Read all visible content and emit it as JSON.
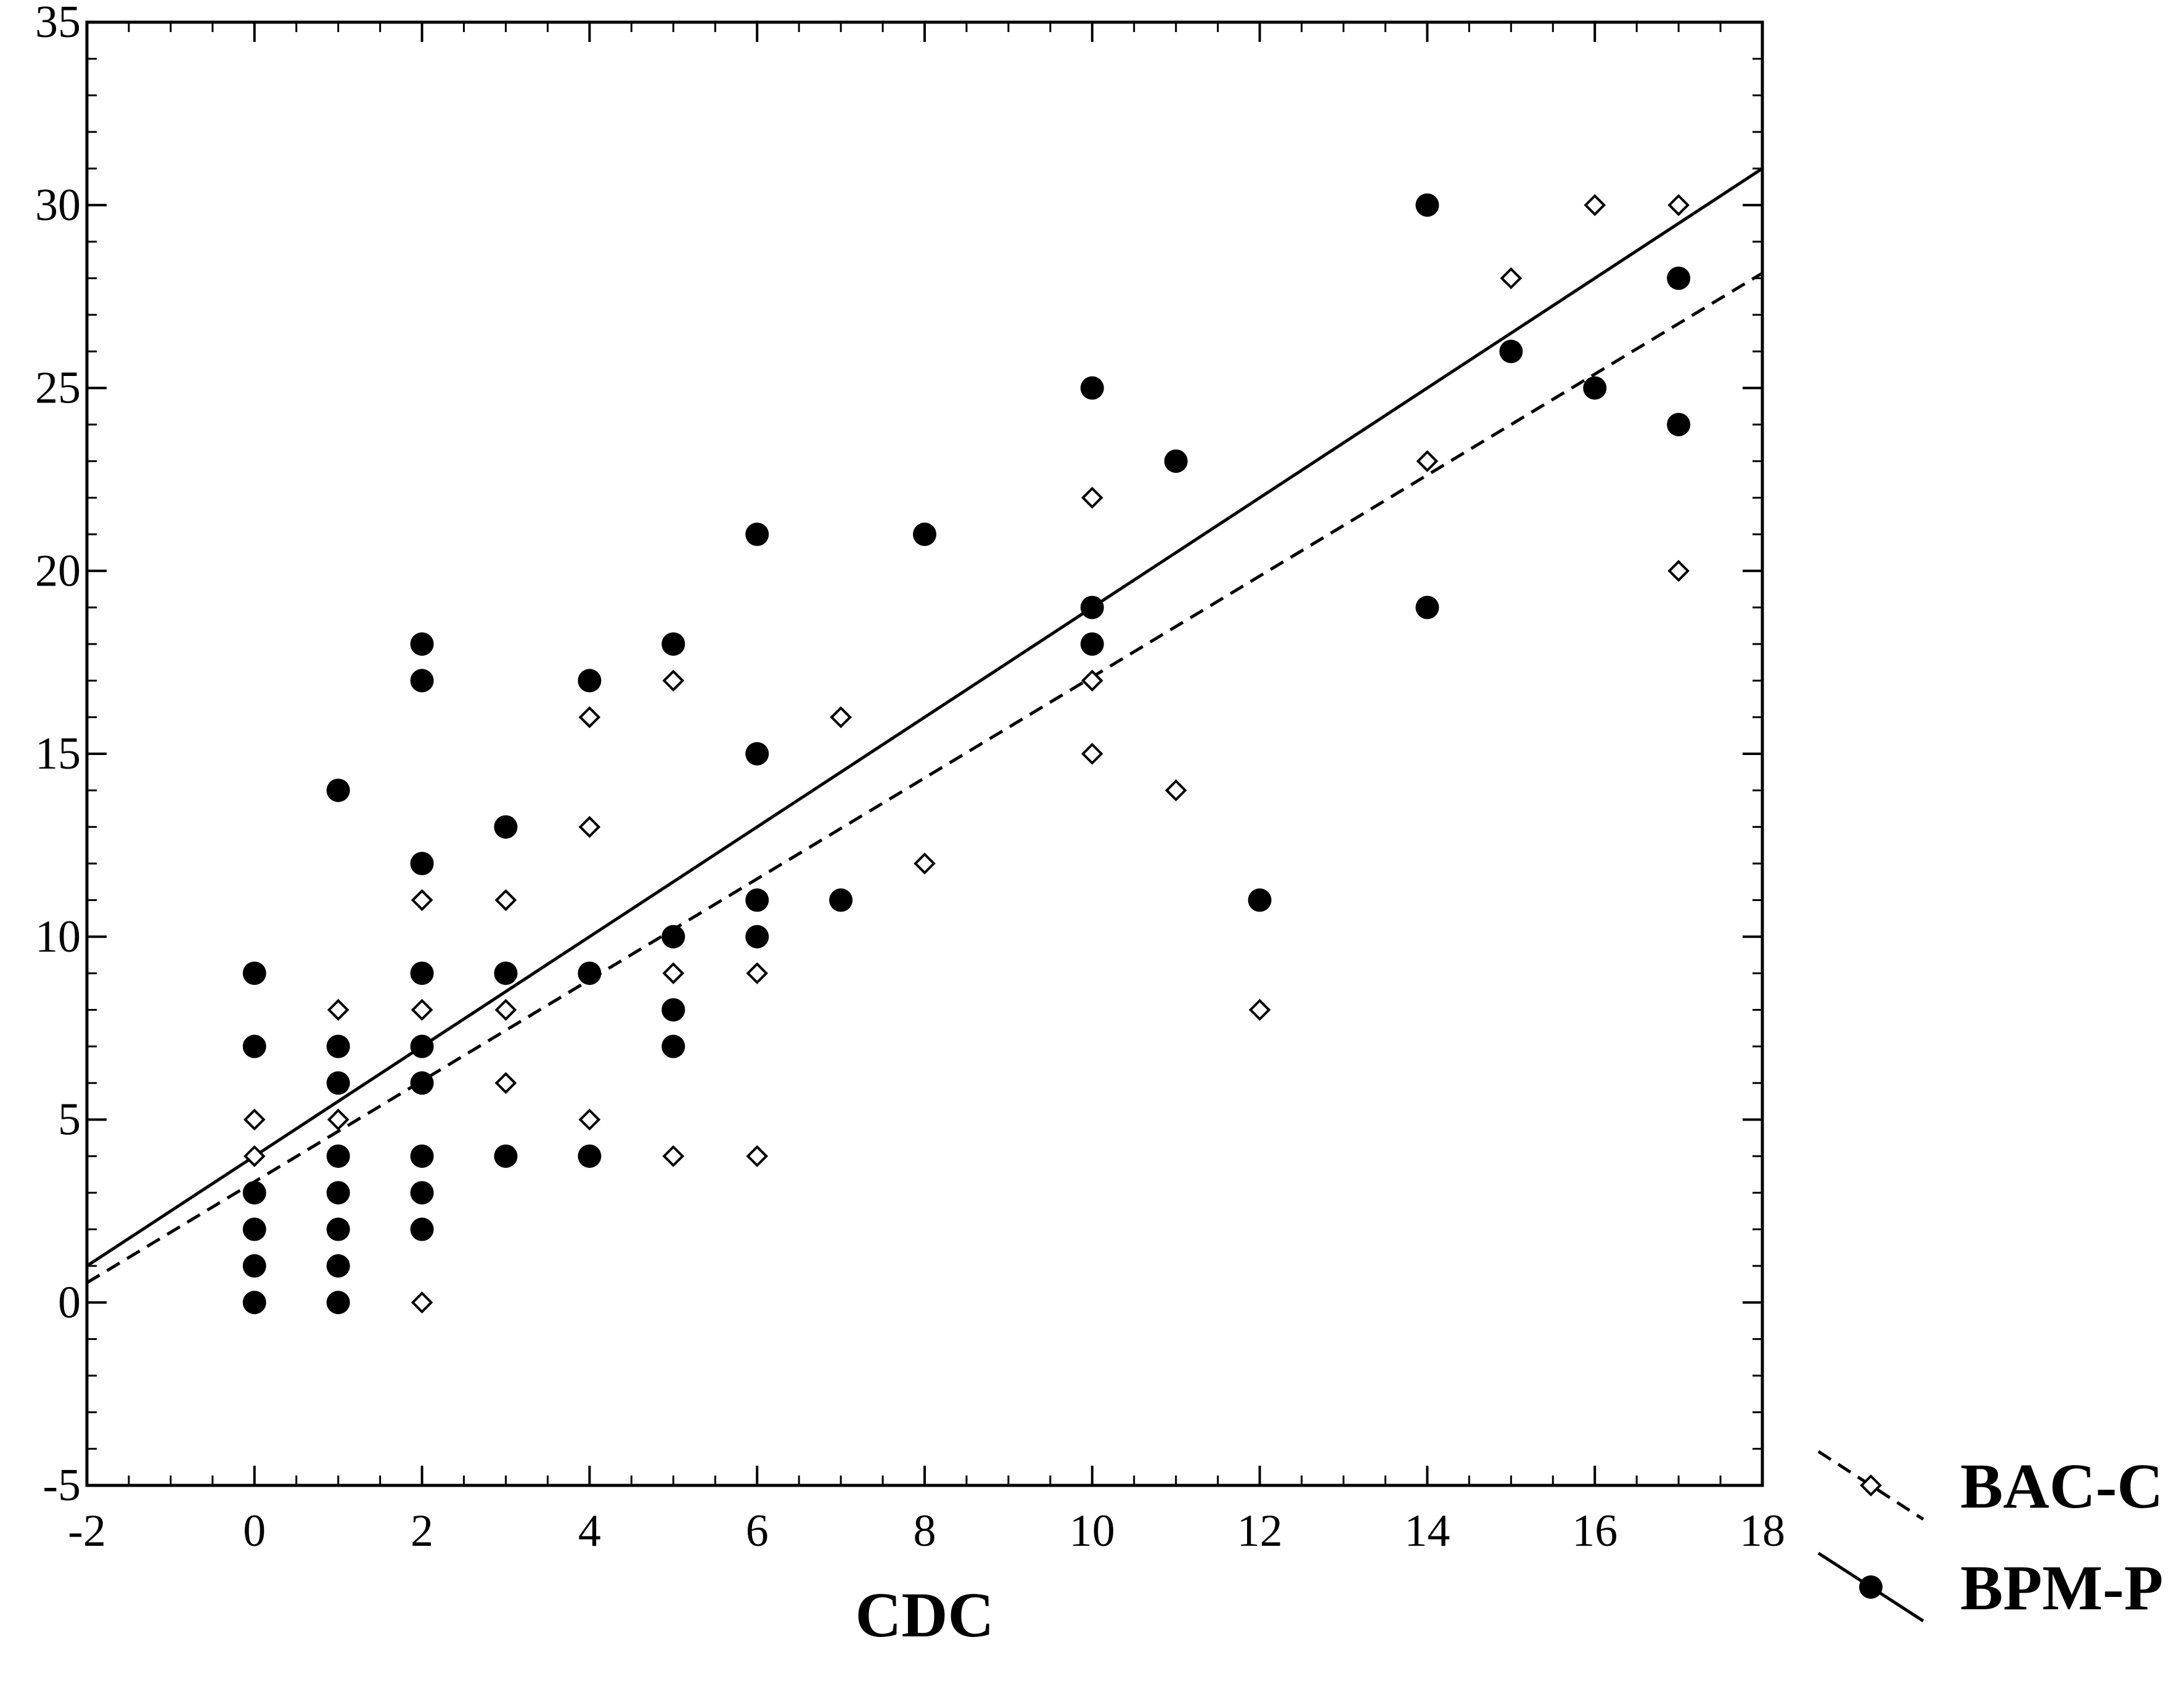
{
  "chart_data": {
    "type": "scatter",
    "title": "",
    "xlabel": "CDC",
    "ylabel": "",
    "xlim": [
      -2,
      18
    ],
    "ylim": [
      -5,
      35
    ],
    "x_ticks": [
      "-2",
      "0",
      "2",
      "4",
      "6",
      "8",
      "10",
      "12",
      "14",
      "16",
      "18"
    ],
    "y_ticks": [
      "-5",
      "0",
      "5",
      "10",
      "15",
      "20",
      "25",
      "30",
      "35"
    ],
    "grid": false,
    "legend_position": "bottom-right-outside",
    "series": [
      {
        "name": "BAC-C",
        "marker": "open-diamond",
        "fit_line": "dashed",
        "fit": {
          "intercept": 3.3,
          "slope": 1.38
        },
        "points": [
          [
            0,
            5
          ],
          [
            0,
            4
          ],
          [
            1,
            8
          ],
          [
            1,
            5
          ],
          [
            2,
            11
          ],
          [
            2,
            8
          ],
          [
            2,
            0
          ],
          [
            3,
            11
          ],
          [
            3,
            8
          ],
          [
            3,
            6
          ],
          [
            4,
            16
          ],
          [
            4,
            13
          ],
          [
            4,
            5
          ],
          [
            5,
            17
          ],
          [
            5,
            9
          ],
          [
            5,
            4
          ],
          [
            6,
            9
          ],
          [
            6,
            4
          ],
          [
            7,
            16
          ],
          [
            8,
            12
          ],
          [
            10,
            22
          ],
          [
            10,
            17
          ],
          [
            10,
            15
          ],
          [
            11,
            14
          ],
          [
            12,
            8
          ],
          [
            14,
            23
          ],
          [
            15,
            28
          ],
          [
            16,
            30
          ],
          [
            17,
            30
          ],
          [
            17,
            20
          ]
        ]
      },
      {
        "name": "BPM-P",
        "marker": "filled-circle",
        "fit_line": "solid",
        "fit": {
          "intercept": 4.0,
          "slope": 1.5
        },
        "points": [
          [
            0,
            9
          ],
          [
            0,
            7
          ],
          [
            0,
            3
          ],
          [
            0,
            2
          ],
          [
            0,
            1
          ],
          [
            0,
            0
          ],
          [
            1,
            14
          ],
          [
            1,
            7
          ],
          [
            1,
            6
          ],
          [
            1,
            4
          ],
          [
            1,
            3
          ],
          [
            1,
            2
          ],
          [
            1,
            1
          ],
          [
            1,
            0
          ],
          [
            2,
            18
          ],
          [
            2,
            17
          ],
          [
            2,
            12
          ],
          [
            2,
            9
          ],
          [
            2,
            7
          ],
          [
            2,
            6
          ],
          [
            2,
            4
          ],
          [
            2,
            3
          ],
          [
            2,
            2
          ],
          [
            3,
            13
          ],
          [
            3,
            9
          ],
          [
            3,
            4
          ],
          [
            4,
            17
          ],
          [
            4,
            9
          ],
          [
            4,
            4
          ],
          [
            5,
            18
          ],
          [
            5,
            10
          ],
          [
            5,
            8
          ],
          [
            5,
            7
          ],
          [
            6,
            21
          ],
          [
            6,
            15
          ],
          [
            6,
            11
          ],
          [
            6,
            10
          ],
          [
            7,
            11
          ],
          [
            8,
            21
          ],
          [
            10,
            25
          ],
          [
            10,
            19
          ],
          [
            10,
            18
          ],
          [
            11,
            23
          ],
          [
            12,
            11
          ],
          [
            14,
            30
          ],
          [
            14,
            19
          ],
          [
            15,
            26
          ],
          [
            16,
            25
          ],
          [
            17,
            28
          ],
          [
            17,
            24
          ]
        ]
      }
    ]
  }
}
